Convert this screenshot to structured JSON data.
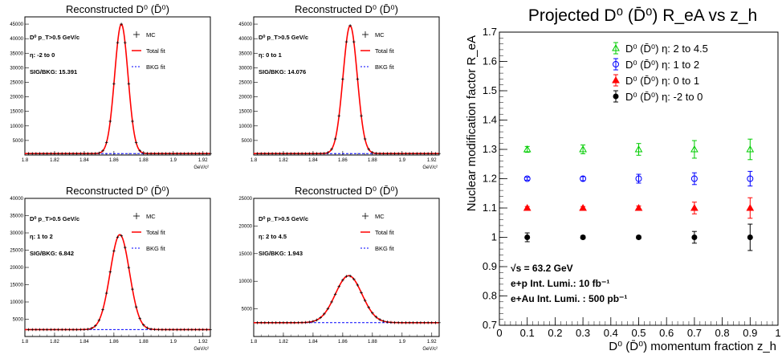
{
  "chart_data": [
    {
      "type": "line",
      "title": "Reconstructed D⁰ (D̄⁰)",
      "xlabel": "GeV/c²",
      "xlim": [
        1.8,
        1.925
      ],
      "ylim": [
        0,
        47500
      ],
      "xticks": [
        "1.8",
        "1.82",
        "1.84",
        "1.86",
        "1.88",
        "1.9",
        "1.92"
      ],
      "yticks": [
        "5000",
        "10000",
        "15000",
        "20000",
        "25000",
        "30000",
        "35000",
        "40000",
        "45000"
      ],
      "annotations": [
        "D⁰ p_T>0.5 GeV/c",
        "η: -2 to 0",
        "SIG/BKG: 15.391"
      ],
      "legend": [
        "MC",
        "Total fit",
        "BKG fit"
      ],
      "peak": {
        "mean": 1.865,
        "sigma": 0.0045,
        "amplitude": 44500
      },
      "background": 500
    },
    {
      "type": "line",
      "title": "Reconstructed D⁰ (D̄⁰)",
      "xlabel": "GeV/c²",
      "xlim": [
        1.8,
        1.925
      ],
      "ylim": [
        0,
        47500
      ],
      "xticks": [
        "1.8",
        "1.82",
        "1.84",
        "1.86",
        "1.88",
        "1.9",
        "1.92"
      ],
      "yticks": [
        "5000",
        "10000",
        "15000",
        "20000",
        "25000",
        "30000",
        "35000",
        "40000",
        "45000"
      ],
      "annotations": [
        "D⁰ p_T>0.5 GeV/c",
        "η: 0 to 1",
        "SIG/BKG: 14.076"
      ],
      "legend": [
        "MC",
        "Total fit",
        "BKG fit"
      ],
      "peak": {
        "mean": 1.865,
        "sigma": 0.0048,
        "amplitude": 44000
      },
      "background": 500
    },
    {
      "type": "line",
      "title": "Reconstructed D⁰ (D̄⁰)",
      "xlabel": "GeV/c²",
      "xlim": [
        1.8,
        1.925
      ],
      "ylim": [
        0,
        40000
      ],
      "xticks": [
        "1.8",
        "1.82",
        "1.84",
        "1.86",
        "1.88",
        "1.9",
        "1.92"
      ],
      "yticks": [
        "5000",
        "10000",
        "15000",
        "20000",
        "25000",
        "30000",
        "35000",
        "40000"
      ],
      "annotations": [
        "D⁰ p_T>0.5 GeV/c",
        "η: 1 to 2",
        "SIG/BKG: 6.842"
      ],
      "legend": [
        "MC",
        "Total fit",
        "BKG fit"
      ],
      "peak": {
        "mean": 1.864,
        "sigma": 0.0065,
        "amplitude": 27500
      },
      "background": 2000
    },
    {
      "type": "line",
      "title": "Reconstructed D⁰ (D̄⁰)",
      "xlabel": "GeV/c²",
      "xlim": [
        1.8,
        1.925
      ],
      "ylim": [
        0,
        25000
      ],
      "xticks": [
        "1.8",
        "1.82",
        "1.84",
        "1.86",
        "1.88",
        "1.9",
        "1.92"
      ],
      "yticks": [
        "5000",
        "10000",
        "15000",
        "20000",
        "25000"
      ],
      "annotations": [
        "D⁰ p_T>0.5 GeV/c",
        "η: 2 to 4.5",
        "SIG/BKG: 1.943"
      ],
      "legend": [
        "MC",
        "Total fit",
        "BKG fit"
      ],
      "peak": {
        "mean": 1.864,
        "sigma": 0.009,
        "amplitude": 8500
      },
      "background": 2500
    },
    {
      "type": "scatter",
      "title": "Projected D⁰ (D̄⁰) R_eA vs z_h",
      "xlabel": "D⁰ (D̄⁰) momentum fraction z_h",
      "ylabel": "Nuclear modification factor R_eA",
      "xlim": [
        0,
        1
      ],
      "ylim": [
        0.7,
        1.7
      ],
      "xticks": [
        "0",
        "0.1",
        "0.2",
        "0.3",
        "0.4",
        "0.5",
        "0.6",
        "0.7",
        "0.8",
        "0.9",
        "1"
      ],
      "yticks": [
        "0.7",
        "0.8",
        "0.9",
        "1",
        "1.1",
        "1.2",
        "1.3",
        "1.4",
        "1.5",
        "1.6",
        "1.7"
      ],
      "x": [
        0.1,
        0.3,
        0.5,
        0.7,
        0.9
      ],
      "series": [
        {
          "name": "D⁰ (D̄⁰) η: 2 to 4.5",
          "color": "#00cc00",
          "marker": "open-triangle",
          "values": [
            1.3,
            1.3,
            1.3,
            1.3,
            1.3
          ],
          "errors": [
            0.01,
            0.015,
            0.02,
            0.03,
            0.035
          ]
        },
        {
          "name": "D⁰ (D̄⁰) η: 1 to 2",
          "color": "#0000ff",
          "marker": "open-circle",
          "values": [
            1.2,
            1.2,
            1.2,
            1.2,
            1.2
          ],
          "errors": [
            0.005,
            0.007,
            0.015,
            0.02,
            0.025
          ]
        },
        {
          "name": "D⁰ (D̄⁰) η: 0 to 1",
          "color": "#ff0000",
          "marker": "filled-triangle",
          "values": [
            1.1,
            1.1,
            1.1,
            1.1,
            1.1
          ],
          "errors": [
            0.005,
            0.005,
            0.007,
            0.02,
            0.035
          ]
        },
        {
          "name": "D⁰ (D̄⁰) η: -2 to 0",
          "color": "#000000",
          "marker": "filled-circle",
          "values": [
            1.0,
            1.0,
            1.0,
            1.0,
            1.0
          ],
          "errors": [
            0.015,
            0.005,
            0.005,
            0.02,
            0.045
          ]
        }
      ],
      "annotations": [
        "√s = 63.2 GeV",
        "e+p Int. Lumi.: 10 fb⁻¹",
        "e+Au Int. Lumi. : 500 pb⁻¹"
      ]
    }
  ]
}
